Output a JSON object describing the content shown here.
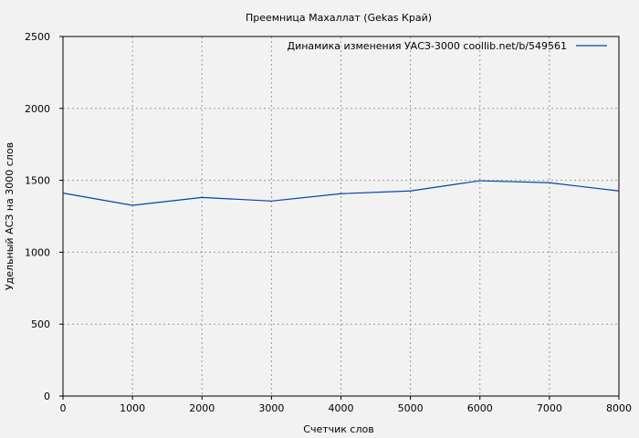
{
  "chart_data": {
    "type": "line",
    "title": "Преемница Махаллат (Gekas Край)",
    "xlabel": "Счетчик слов",
    "ylabel": "Удельный АСЗ на 3000 слов",
    "xlim": [
      0,
      8000
    ],
    "ylim": [
      0,
      2500
    ],
    "xticks": [
      0,
      1000,
      2000,
      3000,
      4000,
      5000,
      6000,
      7000,
      8000
    ],
    "yticks": [
      0,
      500,
      1000,
      1500,
      2000,
      2500
    ],
    "grid": true,
    "legend_position": "top-right",
    "series": [
      {
        "name": "Динамика изменения УАСЗ-3000  coollib.net/b/549561",
        "color": "#0044aa",
        "x": [
          0,
          1000,
          2000,
          3000,
          4000,
          5000,
          6000,
          7000,
          8000
        ],
        "y": [
          1411,
          1326,
          1381,
          1356,
          1407,
          1426,
          1497,
          1483,
          1426
        ]
      }
    ]
  }
}
